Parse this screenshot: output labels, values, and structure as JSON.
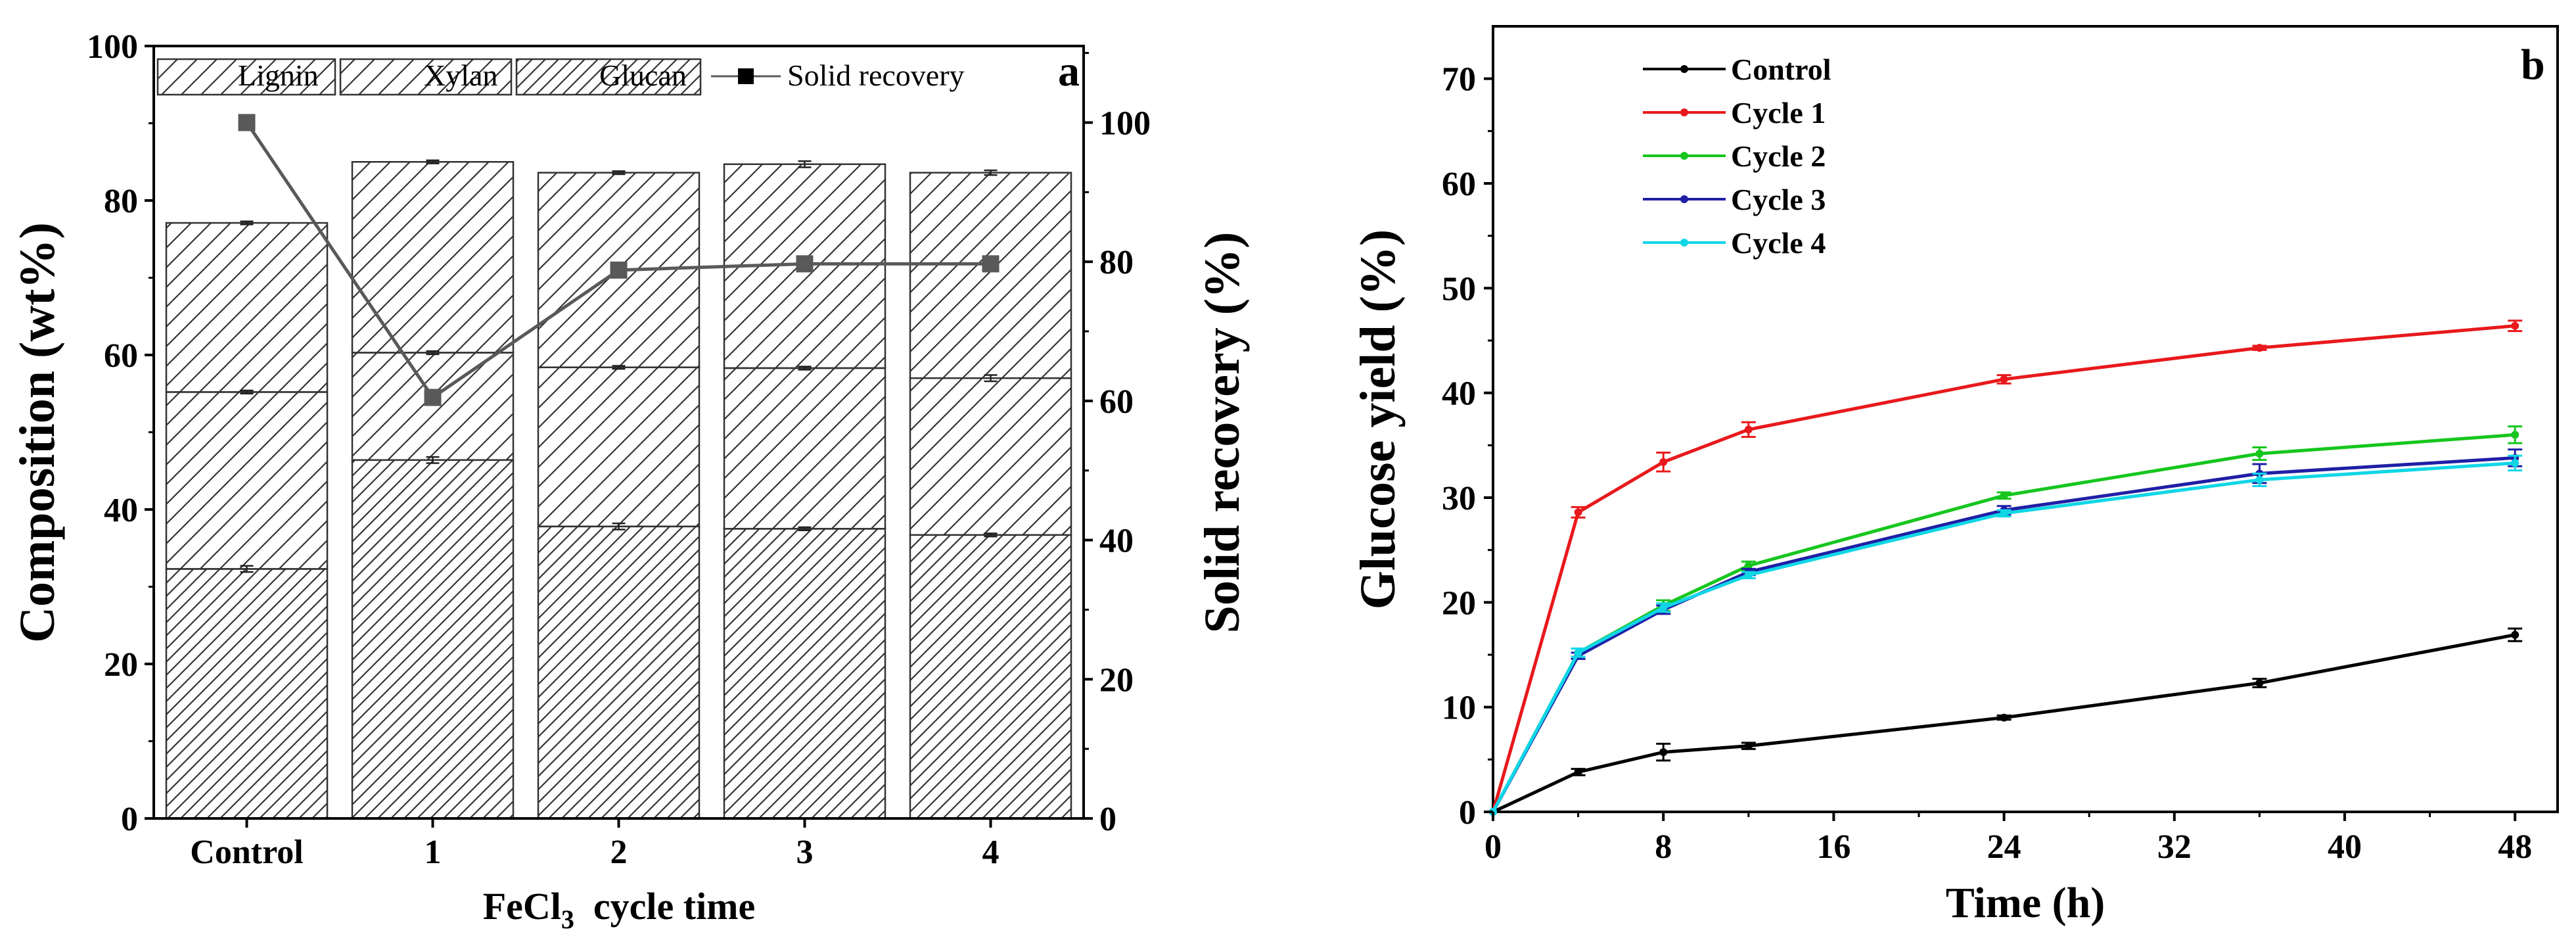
{
  "panels": {
    "a": {
      "letter": "a",
      "xlabel_main": "FeCl",
      "xlabel_sub": "3",
      "xlabel_rest": "  cycle time",
      "ylabel_left": "Composition (wt%)",
      "ylabel_right": "Solid recovery (%)"
    },
    "b": {
      "letter": "b",
      "xlabel": "Time (h)",
      "ylabel": "Glucose yield (%)"
    }
  },
  "chart_data": [
    {
      "type": "bar",
      "stacked": true,
      "categories": [
        "Control",
        "1",
        "2",
        "3",
        "4"
      ],
      "series": [
        {
          "name": "Glucan",
          "values": [
            32.3,
            46.4,
            37.8,
            37.5,
            36.7
          ],
          "errors": [
            0.4,
            0.4,
            0.4,
            0.2,
            0.2
          ],
          "pattern": "dense-hatch"
        },
        {
          "name": "Xylan",
          "values": [
            22.9,
            13.9,
            20.6,
            20.8,
            20.3
          ],
          "errors": [
            0.2,
            0.2,
            0.2,
            0.2,
            0.4
          ],
          "pattern": "hatch"
        },
        {
          "name": "Lignin",
          "values": [
            21.9,
            24.7,
            25.2,
            26.4,
            26.6
          ],
          "errors": [
            0.2,
            0.2,
            0.2,
            0.4,
            0.3
          ],
          "pattern": "hatch"
        }
      ],
      "line_series": {
        "name": "Solid recovery",
        "axis": "right",
        "values": [
          100,
          60.5,
          78.8,
          79.7,
          79.7
        ],
        "color": "#595959"
      },
      "ylim": [
        0,
        100
      ],
      "yticks": [
        0,
        20,
        40,
        60,
        80,
        100
      ],
      "y2lim": [
        0,
        111
      ],
      "y2ticks": [
        0,
        20,
        40,
        60,
        80,
        100
      ],
      "legend_order": [
        "Lignin",
        "Xylan",
        "Glucan",
        "Solid recovery"
      ],
      "legend_position": "top"
    },
    {
      "type": "line",
      "x": [
        0,
        4,
        8,
        12,
        24,
        36,
        48
      ],
      "series": [
        {
          "name": "Control",
          "color": "#000000",
          "values": [
            0,
            3.8,
            5.7,
            6.3,
            9.0,
            12.3,
            16.9
          ],
          "errors": [
            0,
            0.3,
            0.8,
            0.3,
            0.2,
            0.4,
            0.6
          ]
        },
        {
          "name": "Cycle 1",
          "color": "#e8191c",
          "values": [
            0,
            28.6,
            33.4,
            36.5,
            41.3,
            44.3,
            46.4
          ],
          "errors": [
            0,
            0.5,
            0.9,
            0.7,
            0.4,
            0.2,
            0.5
          ]
        },
        {
          "name": "Cycle 2",
          "color": "#16c61e",
          "values": [
            0,
            15.2,
            19.7,
            23.5,
            30.2,
            34.2,
            36.0
          ],
          "errors": [
            0,
            0.4,
            0.5,
            0.4,
            0.3,
            0.6,
            0.8
          ]
        },
        {
          "name": "Cycle 3",
          "color": "#1f1fa6",
          "values": [
            0,
            14.9,
            19.3,
            22.9,
            28.8,
            32.3,
            33.8
          ],
          "errors": [
            0,
            0.3,
            0.4,
            0.3,
            0.4,
            0.9,
            0.8
          ]
        },
        {
          "name": "Cycle 4",
          "color": "#10d6e6",
          "values": [
            0,
            15.2,
            19.5,
            22.6,
            28.5,
            31.7,
            33.3
          ],
          "errors": [
            0,
            0.4,
            0.4,
            0.3,
            0.3,
            0.6,
            0.7
          ]
        }
      ],
      "xlim": [
        0,
        50
      ],
      "xticks": [
        0,
        8,
        16,
        24,
        32,
        40,
        48
      ],
      "ylim": [
        0,
        75
      ],
      "yticks": [
        0,
        10,
        20,
        30,
        40,
        50,
        60,
        70
      ],
      "legend_position": "top-left"
    }
  ]
}
